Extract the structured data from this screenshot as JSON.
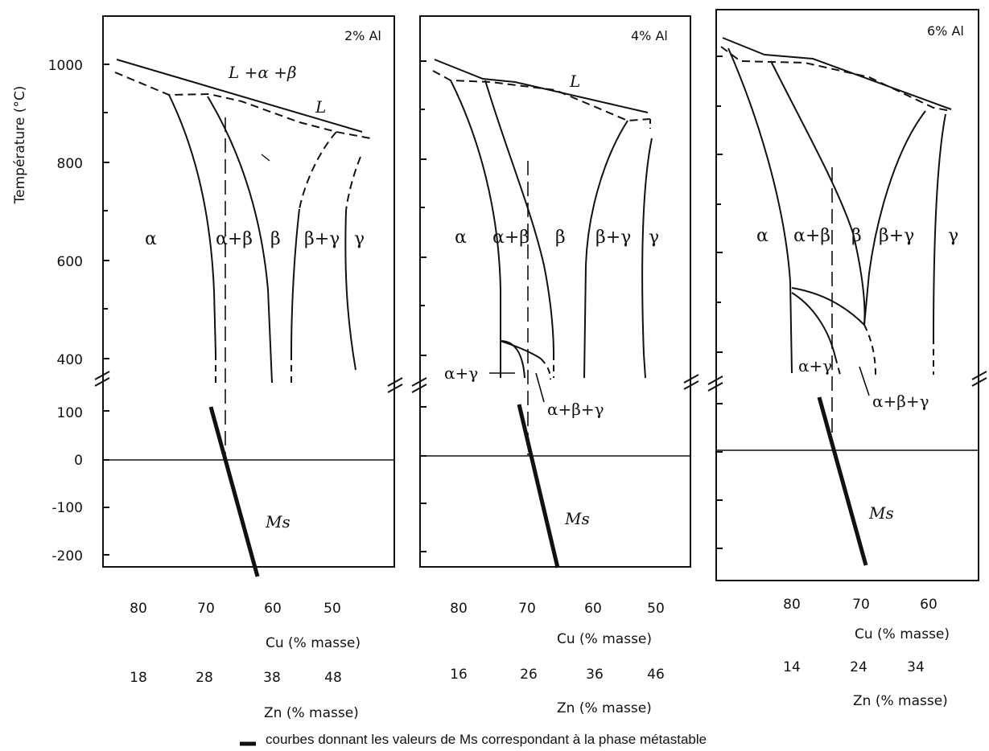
{
  "figure": {
    "y_axis_title": "Température (°C)",
    "y_ticks": [
      "1000",
      "800",
      "600",
      "400",
      "100",
      "0",
      "-100",
      "-200"
    ],
    "legend_text": "courbes donnant les valeurs de Ms correspondant à la phase métastable",
    "ms_label": "Ms",
    "cu_axis_title": "Cu (% masse)",
    "zn_axis_title": "Zn (% masse)",
    "line_color": "#111111"
  },
  "panels": [
    {
      "title": "2% Al",
      "cu_ticks": [
        "80",
        "70",
        "60",
        "50"
      ],
      "zn_ticks": [
        "18",
        "28",
        "38",
        "48"
      ],
      "phases": {
        "liquid_mix": "L +α +β",
        "liquid": "L",
        "alpha": "α",
        "alpha_beta": "α+β",
        "beta": "β",
        "beta_gamma": "β+γ",
        "gamma": "γ"
      }
    },
    {
      "title": "4% Al",
      "cu_ticks": [
        "80",
        "70",
        "60",
        "50"
      ],
      "zn_ticks": [
        "16",
        "26",
        "36",
        "46"
      ],
      "phases": {
        "liquid": "L",
        "alpha": "α",
        "alpha_beta": "α+β",
        "beta": "β",
        "beta_gamma": "β+γ",
        "gamma": "γ",
        "alpha_gamma": "α+γ",
        "alpha_beta_gamma": "α+β+γ"
      }
    },
    {
      "title": "6% Al",
      "cu_ticks": [
        "80",
        "70",
        "60"
      ],
      "zn_ticks": [
        "14",
        "24",
        "34"
      ],
      "phases": {
        "alpha": "α",
        "alpha_beta": "α+β",
        "beta": "β",
        "beta_gamma": "β+γ",
        "gamma": "γ",
        "alpha_gamma": "α+γ",
        "alpha_beta_gamma": "α+β+γ"
      }
    }
  ]
}
